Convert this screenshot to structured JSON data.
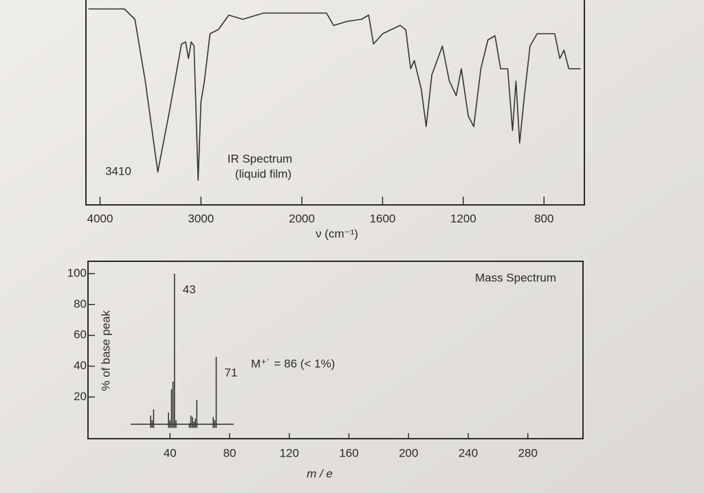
{
  "chart_data": [
    {
      "type": "line",
      "title": "IR Spectrum",
      "subtitle": "(liquid film)",
      "x_label": "ν (cm⁻¹)",
      "annotation": "3410",
      "xlim": [
        4140,
        600
      ],
      "x_break": 2000,
      "x_break_factor": 2,
      "xticks": [
        4000,
        3000,
        2000,
        1600,
        1200,
        800
      ],
      "ylim": [
        0,
        100
      ],
      "color": "#333333",
      "series": [
        {
          "name": "IR Spectrum",
          "color": "#333333",
          "x": [
            4117,
            3759,
            3655,
            3552,
            3428,
            3310,
            3193,
            3152,
            3124,
            3097,
            3069,
            3028,
            3000,
            2966,
            2910,
            2828,
            2724,
            2586,
            2379,
            2103,
            1878,
            1843,
            1774,
            1704,
            1669,
            1645,
            1600,
            1513,
            1485,
            1461,
            1443,
            1408,
            1384,
            1356,
            1304,
            1269,
            1235,
            1210,
            1175,
            1148,
            1113,
            1078,
            1043,
            1015,
            980,
            956,
            939,
            921,
            897,
            869,
            834,
            747,
            722,
            701,
            677,
            618
          ],
          "values": [
            95,
            95,
            90,
            60,
            16,
            46,
            78,
            79,
            71,
            79,
            77,
            12,
            50,
            60,
            83,
            85,
            92,
            90,
            93,
            93,
            93,
            87,
            89,
            90,
            92,
            78,
            83,
            87,
            85,
            66,
            70,
            56,
            38,
            63,
            77,
            60,
            53,
            66,
            43,
            38,
            66,
            80,
            82,
            66,
            66,
            36,
            60,
            30,
            53,
            77,
            83,
            83,
            71,
            75,
            66,
            66
          ]
        }
      ]
    },
    {
      "type": "stem",
      "title": "Mass Spectrum",
      "annotation": "M⁺˙ = 86  (< 1%)",
      "x_label": "m / e",
      "y_label": "% of base peak",
      "xlim": [
        -15,
        317
      ],
      "xticks": [
        40,
        80,
        120,
        160,
        200,
        240,
        280
      ],
      "ylim": [
        -7,
        108
      ],
      "yticks": [
        20,
        40,
        60,
        80,
        100
      ],
      "labeled_peaks": [
        7,
        17
      ],
      "series": [
        {
          "name": "Mass Spectrum",
          "color": "#333333",
          "x": [
            27,
            28,
            29,
            39,
            40,
            41,
            42,
            43,
            44,
            53,
            54,
            55,
            56,
            57,
            58,
            69,
            70,
            71
          ],
          "values": [
            8,
            5,
            12,
            10,
            5,
            25,
            30,
            100,
            5,
            3,
            8,
            7,
            4,
            6,
            18,
            7,
            5,
            46
          ]
        }
      ]
    }
  ]
}
